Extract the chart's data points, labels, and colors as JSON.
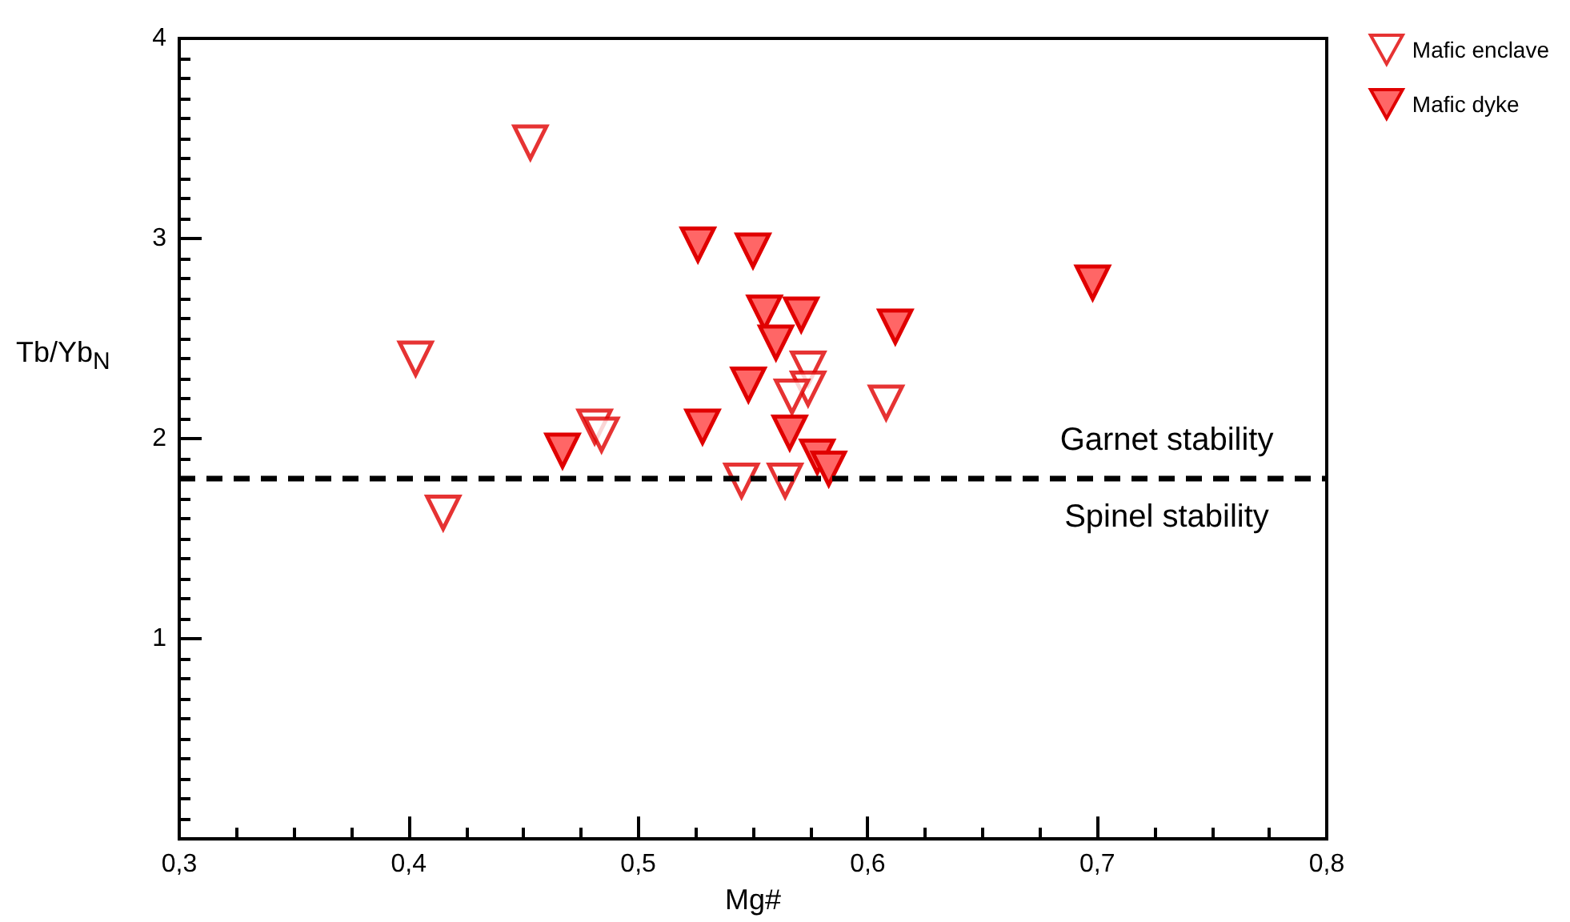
{
  "chart_data": {
    "type": "scatter",
    "xlabel": "Mg#",
    "ylabel": "Tb/Yb$_{N}$",
    "xlim": [
      0.3,
      0.8
    ],
    "xticks": [
      {
        "value": 0.3,
        "label": "0,3"
      },
      {
        "value": 0.4,
        "label": "0,4"
      },
      {
        "value": 0.5,
        "label": "0,5"
      },
      {
        "value": 0.6,
        "label": "0,6"
      },
      {
        "value": 0.7,
        "label": "0,7"
      },
      {
        "value": 0.8,
        "label": "0,8"
      }
    ],
    "ylim": [
      0,
      4
    ],
    "yticks": [
      1,
      2,
      3,
      4
    ],
    "grid": false,
    "legend": "top right",
    "marker": "triangle",
    "series": [
      {
        "name": "Mafic enclave",
        "color": "#e00000",
        "x": [
          0.453,
          0.403,
          0.415,
          0.481,
          0.484,
          0.545,
          0.564,
          0.574,
          0.574,
          0.567,
          0.608
        ],
        "values": [
          3.48,
          2.4,
          1.63,
          2.06,
          2.02,
          1.79,
          1.79,
          2.35,
          2.25,
          2.21,
          2.18
        ]
      },
      {
        "name": "Mafic dyke",
        "color": "#ff6666",
        "x": [
          0.526,
          0.55,
          0.555,
          0.571,
          0.56,
          0.548,
          0.528,
          0.566,
          0.578,
          0.583,
          0.467,
          0.612,
          0.698
        ],
        "values": [
          2.97,
          2.94,
          2.63,
          2.62,
          2.48,
          2.27,
          2.06,
          2.03,
          1.91,
          1.85,
          1.94,
          2.56,
          2.78
        ]
      }
    ],
    "ref_lines": [
      {
        "axis": "y",
        "value": 1.8,
        "label": null,
        "color": "#000000",
        "line_style": "dashed"
      }
    ],
    "annotations": [
      "Garnet stability",
      "Spinel stability"
    ]
  }
}
